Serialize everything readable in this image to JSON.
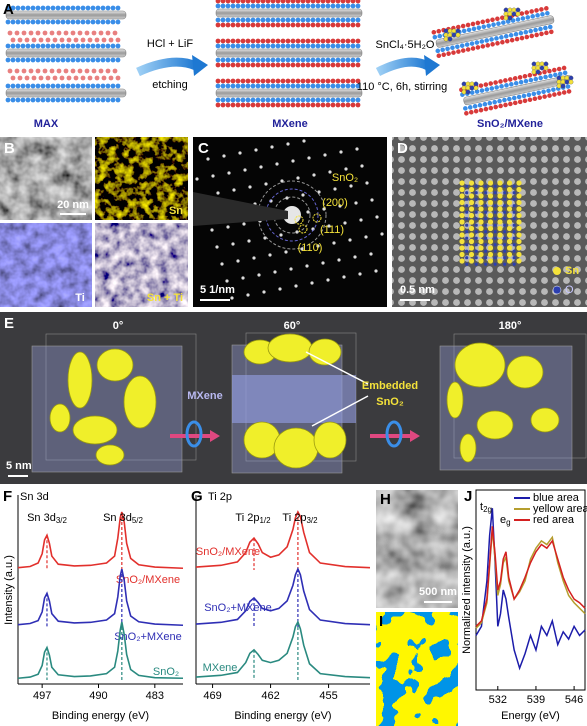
{
  "panel_labels": {
    "a": "A",
    "b": "B",
    "c": "C",
    "d": "D",
    "e": "E",
    "f": "F",
    "g": "G",
    "h": "H",
    "i": "I",
    "j": "J"
  },
  "panel_a": {
    "max": "MAX",
    "mxene": "MXene",
    "product": "SnO₂/MXene",
    "reagent_1": "HCl + LiF",
    "step_1": "etching",
    "reagent_2": "SnCl₄·5H₂O",
    "conditions_2": "110 °C, 6h, stirring"
  },
  "panel_b": {
    "scale": "20 nm",
    "sn": "Sn",
    "ti": "Ti",
    "sn_ti": "Sn + Ti"
  },
  "panel_c": {
    "phase": "SnO₂",
    "planes": [
      "(200)",
      "(111)",
      "(110)"
    ],
    "scale": "5 1/nm"
  },
  "panel_d": {
    "scale": "0.5 nm",
    "legend": [
      "Sn",
      "O"
    ]
  },
  "panel_e": {
    "angles": [
      "0°",
      "60°",
      "180°"
    ],
    "mxene": "MXene",
    "embedded": [
      "Embedded",
      "SnO₂"
    ],
    "scale": "5 nm"
  },
  "panel_f": {
    "title": "Sn 3d",
    "peaks": [
      {
        "main": "Sn 3d",
        "sub": "3/2"
      },
      {
        "main": "Sn 3d",
        "sub": "5/2"
      }
    ],
    "xlabel": "Binding energy (eV)",
    "ylabel": "Intensity (a.u.)",
    "xlim": [
      500,
      479.5
    ],
    "xticks": [
      497,
      490,
      483
    ],
    "x": [
      500,
      498.5,
      497.5,
      497,
      496.7,
      496.4,
      496.1,
      495.8,
      495,
      493,
      491,
      489,
      488,
      487.6,
      487.3,
      487.1,
      486.8,
      486.5,
      486,
      485,
      483,
      479.5
    ],
    "series": [
      {
        "name": "SnO₂/MXene",
        "color": "#e2302c",
        "values": [
          0.04,
          0.06,
          0.12,
          0.28,
          0.52,
          0.6,
          0.46,
          0.24,
          0.1,
          0.07,
          0.08,
          0.12,
          0.24,
          0.55,
          0.9,
          1.0,
          0.82,
          0.46,
          0.2,
          0.09,
          0.05,
          0.03
        ]
      },
      {
        "name": "SnO₂+MXene",
        "color": "#2f2fb5",
        "values": [
          0.04,
          0.06,
          0.11,
          0.26,
          0.5,
          0.58,
          0.45,
          0.23,
          0.1,
          0.07,
          0.08,
          0.12,
          0.23,
          0.52,
          0.88,
          1.0,
          0.8,
          0.45,
          0.19,
          0.09,
          0.05,
          0.03
        ]
      },
      {
        "name": "SnO₂",
        "color": "#2a8a80",
        "values": [
          0.03,
          0.05,
          0.1,
          0.25,
          0.48,
          0.56,
          0.43,
          0.22,
          0.09,
          0.06,
          0.07,
          0.11,
          0.22,
          0.5,
          0.86,
          1.0,
          0.78,
          0.44,
          0.18,
          0.08,
          0.04,
          0.03
        ]
      }
    ]
  },
  "panel_g": {
    "title": "Ti 2p",
    "peaks": [
      {
        "main": "Ti 2p",
        "sub": "1/2"
      },
      {
        "main": "Ti 2p",
        "sub": "3/2"
      }
    ],
    "xlabel": "Binding energy (eV)",
    "xlim": [
      471,
      450
    ],
    "xticks": [
      469,
      462,
      455
    ],
    "x": [
      471,
      468,
      466,
      465,
      464.5,
      464,
      463.5,
      463,
      462,
      461,
      460,
      459.3,
      459,
      458.7,
      458.4,
      458,
      457.3,
      456,
      453,
      450
    ],
    "series": [
      {
        "name": "SnO₂/MXene",
        "color": "#e2302c",
        "values": [
          0.05,
          0.08,
          0.14,
          0.3,
          0.48,
          0.55,
          0.45,
          0.3,
          0.22,
          0.26,
          0.4,
          0.7,
          0.9,
          1.0,
          0.92,
          0.65,
          0.3,
          0.12,
          0.06,
          0.04
        ]
      },
      {
        "name": "SnO₂+MXene",
        "color": "#2f2fb5",
        "values": [
          0.05,
          0.08,
          0.13,
          0.28,
          0.44,
          0.5,
          0.42,
          0.32,
          0.28,
          0.32,
          0.45,
          0.72,
          0.9,
          1.0,
          0.9,
          0.62,
          0.3,
          0.12,
          0.06,
          0.04
        ]
      },
      {
        "name": "MXene",
        "color": "#2a8a80",
        "values": [
          0.05,
          0.08,
          0.13,
          0.3,
          0.46,
          0.52,
          0.44,
          0.34,
          0.3,
          0.34,
          0.46,
          0.74,
          0.92,
          1.0,
          0.88,
          0.6,
          0.28,
          0.11,
          0.06,
          0.04
        ]
      }
    ]
  },
  "panel_h": {
    "scale": "500 nm"
  },
  "panel_j": {
    "xlabel": "Energy (eV)",
    "ylabel": "Normalized intensity (a.u.)",
    "xlim": [
      528,
      548
    ],
    "ylim": [
      0,
      1.1
    ],
    "xticks": [
      532,
      539,
      546
    ],
    "annotations": [
      {
        "main": "t",
        "sub": "2g"
      },
      {
        "main": "e",
        "sub": "g"
      }
    ],
    "x": [
      528,
      529,
      530,
      530.5,
      531,
      531.5,
      532,
      532.5,
      533,
      533.5,
      534,
      535,
      536,
      537,
      538,
      539,
      540,
      541,
      542,
      543,
      544,
      545,
      546,
      547,
      548
    ],
    "series": [
      {
        "name": "blue area",
        "color": "#1c1caa",
        "values": [
          0.3,
          0.35,
          0.6,
          0.85,
          1.0,
          0.7,
          0.35,
          0.42,
          0.55,
          0.5,
          0.4,
          0.22,
          0.12,
          0.2,
          0.3,
          0.22,
          0.35,
          0.3,
          0.38,
          0.25,
          0.32,
          0.28,
          0.35,
          0.3,
          0.33
        ]
      },
      {
        "name": "yellow area",
        "color": "#b59e2e",
        "values": [
          0.34,
          0.37,
          0.48,
          0.68,
          0.88,
          0.72,
          0.52,
          0.58,
          0.7,
          0.73,
          0.6,
          0.5,
          0.54,
          0.6,
          0.72,
          0.78,
          0.82,
          0.8,
          0.84,
          0.7,
          0.6,
          0.52,
          0.48,
          0.45,
          0.42
        ]
      },
      {
        "name": "red area",
        "color": "#d42020",
        "values": [
          0.35,
          0.38,
          0.5,
          0.7,
          0.9,
          0.75,
          0.55,
          0.6,
          0.72,
          0.76,
          0.62,
          0.5,
          0.55,
          0.62,
          0.7,
          0.76,
          0.8,
          0.78,
          0.82,
          0.72,
          0.62,
          0.55,
          0.5,
          0.48,
          0.45
        ]
      }
    ]
  }
}
